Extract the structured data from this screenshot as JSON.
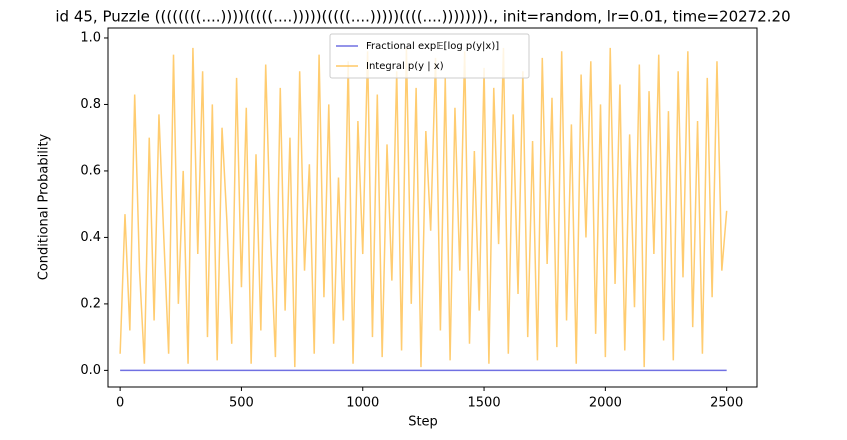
{
  "chart_data": {
    "type": "line",
    "title": "id 45, Puzzle ((((((((....))))(((((....)))))(((((....)))))((((....))))))))., init=random, lr=0.01, time=20272.20",
    "xlabel": "Step",
    "ylabel": "Conditional Probability",
    "x": [
      0,
      20,
      40,
      60,
      80,
      100,
      120,
      140,
      160,
      180,
      200,
      220,
      240,
      260,
      280,
      300,
      320,
      340,
      360,
      380,
      400,
      420,
      440,
      460,
      480,
      500,
      520,
      540,
      560,
      580,
      600,
      620,
      640,
      660,
      680,
      700,
      720,
      740,
      760,
      780,
      800,
      820,
      840,
      860,
      880,
      900,
      920,
      940,
      960,
      980,
      1000,
      1020,
      1040,
      1060,
      1080,
      1100,
      1120,
      1140,
      1160,
      1180,
      1200,
      1220,
      1240,
      1260,
      1280,
      1300,
      1320,
      1340,
      1360,
      1380,
      1400,
      1420,
      1440,
      1460,
      1480,
      1500,
      1520,
      1540,
      1560,
      1580,
      1600,
      1620,
      1640,
      1660,
      1680,
      1700,
      1720,
      1740,
      1760,
      1780,
      1800,
      1820,
      1840,
      1860,
      1880,
      1900,
      1920,
      1940,
      1960,
      1980,
      2000,
      2020,
      2040,
      2060,
      2080,
      2100,
      2120,
      2140,
      2160,
      2180,
      2200,
      2220,
      2240,
      2260,
      2280,
      2300,
      2320,
      2340,
      2360,
      2380,
      2400,
      2420,
      2440,
      2460,
      2480,
      2500
    ],
    "series": [
      {
        "name": "Fractional exp𝔼[log p(y|x)]",
        "color": "#4040d8",
        "values": [
          0,
          0,
          0,
          0,
          0,
          0,
          0,
          0,
          0,
          0,
          0,
          0,
          0,
          0,
          0,
          0,
          0,
          0,
          0,
          0,
          0,
          0,
          0,
          0,
          0,
          0,
          0,
          0,
          0,
          0,
          0,
          0,
          0,
          0,
          0,
          0,
          0,
          0,
          0,
          0,
          0,
          0,
          0,
          0,
          0,
          0,
          0,
          0,
          0,
          0,
          0,
          0,
          0,
          0,
          0,
          0,
          0,
          0,
          0,
          0,
          0,
          0,
          0,
          0,
          0,
          0,
          0,
          0,
          0,
          0,
          0,
          0,
          0,
          0,
          0,
          0,
          0,
          0,
          0,
          0,
          0,
          0,
          0,
          0,
          0,
          0,
          0,
          0,
          0,
          0,
          0,
          0,
          0,
          0,
          0,
          0,
          0,
          0,
          0,
          0,
          0,
          0,
          0,
          0,
          0,
          0,
          0,
          0,
          0,
          0,
          0,
          0,
          0,
          0,
          0,
          0,
          0,
          0,
          0,
          0,
          0,
          0,
          0,
          0,
          0,
          0
        ]
      },
      {
        "name": "Integral p(y | x)",
        "color": "#ffb733",
        "values": [
          0.05,
          0.47,
          0.12,
          0.83,
          0.3,
          0.02,
          0.7,
          0.15,
          0.77,
          0.4,
          0.05,
          0.95,
          0.2,
          0.6,
          0.02,
          0.97,
          0.35,
          0.9,
          0.1,
          0.8,
          0.03,
          0.73,
          0.45,
          0.08,
          0.88,
          0.25,
          0.79,
          0.02,
          0.65,
          0.12,
          0.92,
          0.4,
          0.04,
          0.85,
          0.18,
          0.7,
          0.01,
          0.9,
          0.3,
          0.62,
          0.05,
          0.95,
          0.22,
          0.8,
          0.08,
          0.58,
          0.15,
          0.93,
          0.02,
          0.75,
          0.35,
          0.96,
          0.1,
          0.83,
          0.04,
          0.68,
          0.27,
          0.9,
          0.06,
          0.97,
          0.2,
          0.85,
          0.01,
          0.72,
          0.42,
          0.94,
          0.12,
          0.88,
          0.03,
          0.79,
          0.3,
          0.96,
          0.08,
          0.66,
          0.18,
          0.91,
          0.02,
          0.85,
          0.38,
          0.97,
          0.05,
          0.77,
          0.23,
          0.9,
          0.1,
          0.69,
          0.03,
          0.94,
          0.32,
          0.82,
          0.07,
          0.96,
          0.15,
          0.74,
          0.02,
          0.89,
          0.4,
          0.93,
          0.11,
          0.8,
          0.04,
          0.97,
          0.26,
          0.86,
          0.06,
          0.71,
          0.19,
          0.92,
          0.01,
          0.84,
          0.35,
          0.95,
          0.09,
          0.78,
          0.03,
          0.9,
          0.28,
          0.96,
          0.13,
          0.75,
          0.05,
          0.88,
          0.22,
          0.93,
          0.3,
          0.48
        ]
      }
    ],
    "xlim": [
      -50,
      2625
    ],
    "xticks": [
      0,
      500,
      1000,
      1500,
      2000,
      2500
    ],
    "ylim": [
      -0.05,
      1.03
    ],
    "yticks": [
      {
        "value": 0,
        "label": "0.0"
      },
      0.2,
      0.4,
      0.6,
      0.8,
      {
        "value": 1,
        "label": "1.0"
      }
    ],
    "legend": "upper center"
  }
}
